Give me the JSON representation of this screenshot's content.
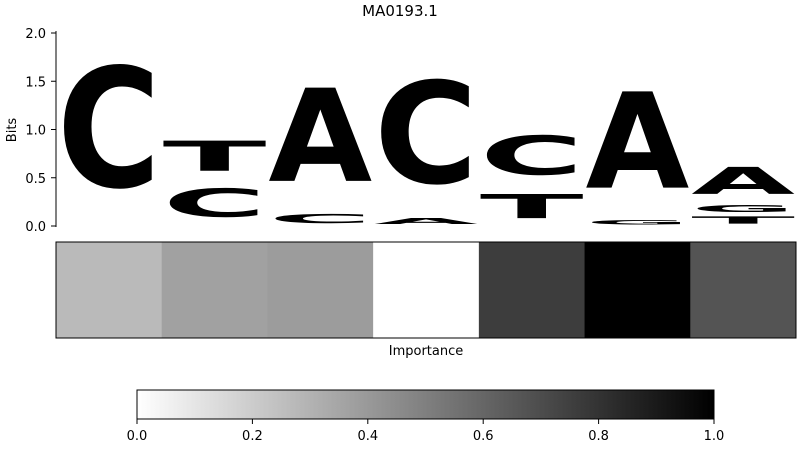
{
  "chart_data": [
    {
      "type": "sequence-logo",
      "title": "MA0193.1",
      "ylabel": "Bits",
      "ylim": [
        0,
        2.0
      ],
      "yticks": [
        "0.0",
        "0.5",
        "1.0",
        "1.5",
        "2.0"
      ],
      "colors": {
        "A": "#4ba84b",
        "C": "#4b4bff",
        "G": "#f7bd40",
        "T": "#ff4b4b"
      },
      "positions": [
        {
          "position": 1,
          "letters": [
            {
              "base": "C",
              "bits": 2.0
            }
          ]
        },
        {
          "position": 2,
          "letters": [
            {
              "base": "C",
              "bits": 0.47
            },
            {
              "base": "T",
              "bits": 0.5
            }
          ]
        },
        {
          "position": 3,
          "letters": [
            {
              "base": "C",
              "bits": 0.15
            },
            {
              "base": "A",
              "bits": 1.55
            }
          ]
        },
        {
          "position": 4,
          "letters": [
            {
              "base": "A",
              "bits": 0.1
            },
            {
              "base": "C",
              "bits": 1.7
            }
          ]
        },
        {
          "position": 5,
          "letters": [
            {
              "base": "T",
              "bits": 0.4
            },
            {
              "base": "C",
              "bits": 0.65
            }
          ]
        },
        {
          "position": 6,
          "letters": [
            {
              "base": "G",
              "bits": 0.07
            },
            {
              "base": "A",
              "bits": 1.6
            }
          ]
        },
        {
          "position": 7,
          "letters": [
            {
              "base": "T",
              "bits": 0.12
            },
            {
              "base": "G",
              "bits": 0.12
            },
            {
              "base": "A",
              "bits": 0.45
            }
          ]
        }
      ]
    },
    {
      "type": "heatmap",
      "xlabel": "Importance",
      "values": [
        0.27,
        0.37,
        0.39,
        0.0,
        0.76,
        1.0,
        0.67
      ]
    },
    {
      "type": "colorbar",
      "range": [
        0.0,
        1.0
      ],
      "ticks": [
        "0.0",
        "0.2",
        "0.4",
        "0.6",
        "0.8",
        "1.0"
      ]
    }
  ]
}
